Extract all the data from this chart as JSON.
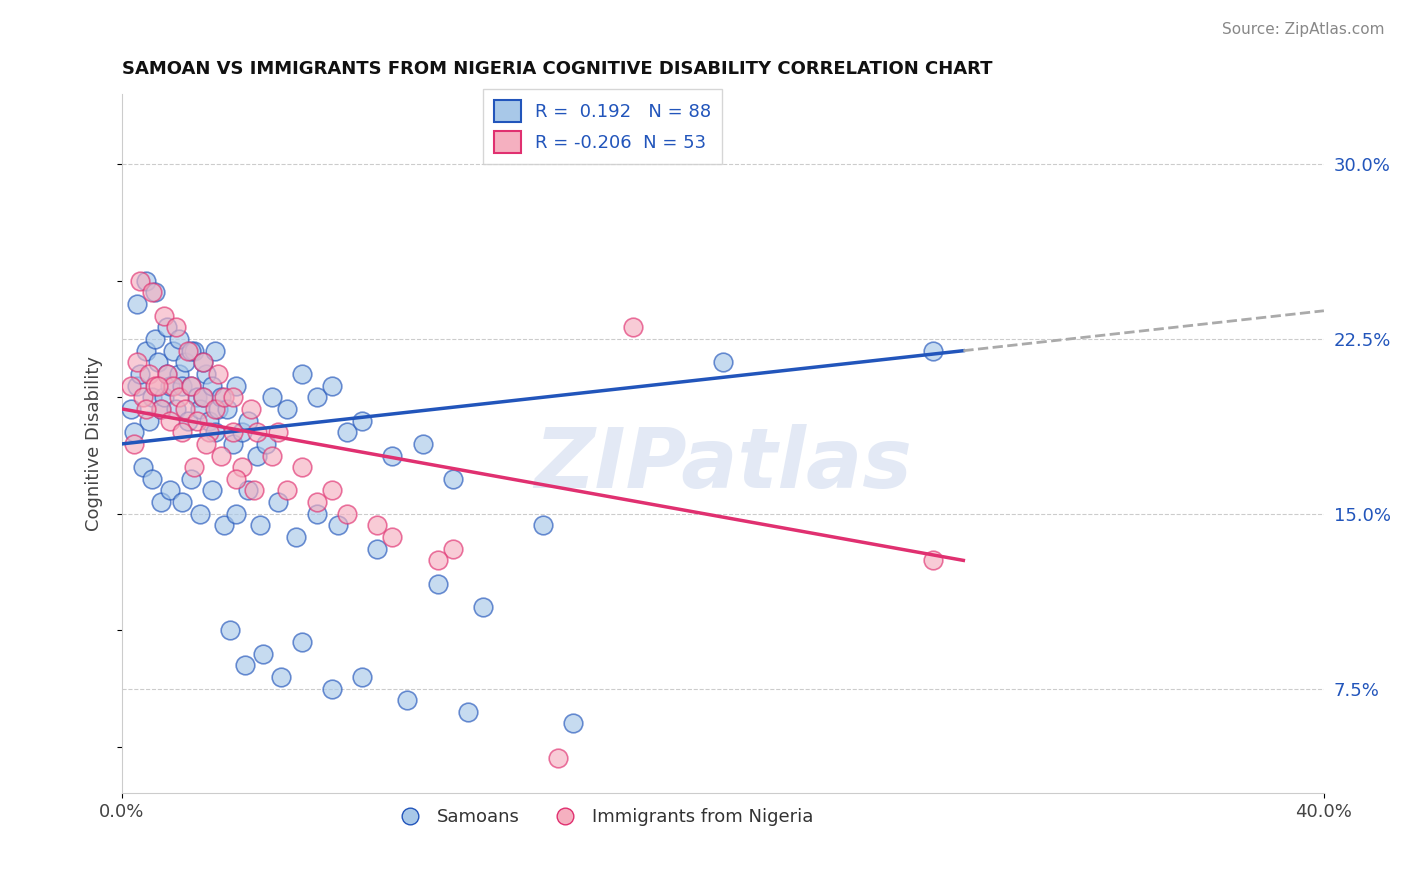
{
  "title": "SAMOAN VS IMMIGRANTS FROM NIGERIA COGNITIVE DISABILITY CORRELATION CHART",
  "source": "Source: ZipAtlas.com",
  "ylabel": "Cognitive Disability",
  "right_yticks": [
    7.5,
    15.0,
    22.5,
    30.0
  ],
  "xlim": [
    0.0,
    40.0
  ],
  "ylim": [
    3.0,
    33.0
  ],
  "blue_R": 0.192,
  "blue_N": 88,
  "pink_R": -0.206,
  "pink_N": 53,
  "blue_color": "#a8c8e8",
  "pink_color": "#f5b0c0",
  "blue_line_color": "#2255bb",
  "pink_line_color": "#e03070",
  "blue_trend_start_y": 18.0,
  "blue_trend_end_y": 22.0,
  "blue_trend_end_x": 28.0,
  "pink_trend_start_y": 19.5,
  "pink_trend_end_y": 13.0,
  "pink_dashed_end_y": 22.5,
  "pink_dashed_end_x": 35.0,
  "watermark_text": "ZIPatlas",
  "blue_scatter_x": [
    0.3,
    0.5,
    0.6,
    0.8,
    0.9,
    1.0,
    1.1,
    1.2,
    1.3,
    1.4,
    1.5,
    1.6,
    1.7,
    1.8,
    1.9,
    2.0,
    2.1,
    2.2,
    2.3,
    2.4,
    2.5,
    2.6,
    2.7,
    2.8,
    2.9,
    3.0,
    3.1,
    3.2,
    3.3,
    3.5,
    3.7,
    3.8,
    4.0,
    4.2,
    4.5,
    4.8,
    5.0,
    5.5,
    6.0,
    6.5,
    7.0,
    7.5,
    8.0,
    9.0,
    10.0,
    11.0,
    14.0,
    20.0,
    27.0,
    0.4,
    0.7,
    1.0,
    1.3,
    1.6,
    2.0,
    2.3,
    2.6,
    3.0,
    3.4,
    3.8,
    4.2,
    4.6,
    5.2,
    5.8,
    6.5,
    7.2,
    8.5,
    10.5,
    12.0,
    0.5,
    0.8,
    1.1,
    1.5,
    1.9,
    2.3,
    2.7,
    3.1,
    3.6,
    4.1,
    4.7,
    5.3,
    6.0,
    7.0,
    8.0,
    9.5,
    11.5,
    15.0
  ],
  "blue_scatter_y": [
    19.5,
    20.5,
    21.0,
    22.0,
    19.0,
    20.0,
    22.5,
    21.5,
    19.5,
    20.0,
    21.0,
    20.5,
    22.0,
    19.5,
    21.0,
    20.5,
    21.5,
    19.0,
    20.5,
    22.0,
    20.0,
    19.5,
    20.0,
    21.0,
    19.0,
    20.5,
    18.5,
    19.5,
    20.0,
    19.5,
    18.0,
    20.5,
    18.5,
    19.0,
    17.5,
    18.0,
    20.0,
    19.5,
    21.0,
    20.0,
    20.5,
    18.5,
    19.0,
    17.5,
    18.0,
    16.5,
    14.5,
    21.5,
    22.0,
    18.5,
    17.0,
    16.5,
    15.5,
    16.0,
    15.5,
    16.5,
    15.0,
    16.0,
    14.5,
    15.0,
    16.0,
    14.5,
    15.5,
    14.0,
    15.0,
    14.5,
    13.5,
    12.0,
    11.0,
    24.0,
    25.0,
    24.5,
    23.0,
    22.5,
    22.0,
    21.5,
    22.0,
    10.0,
    8.5,
    9.0,
    8.0,
    9.5,
    7.5,
    8.0,
    7.0,
    6.5,
    6.0
  ],
  "pink_scatter_x": [
    0.3,
    0.5,
    0.7,
    0.9,
    1.1,
    1.3,
    1.5,
    1.7,
    1.9,
    2.1,
    2.3,
    2.5,
    2.7,
    2.9,
    3.1,
    3.4,
    3.7,
    4.0,
    4.5,
    5.0,
    5.5,
    6.5,
    7.5,
    9.0,
    11.0,
    17.0,
    27.0,
    0.4,
    0.8,
    1.2,
    1.6,
    2.0,
    2.4,
    2.8,
    3.3,
    3.8,
    4.4,
    0.6,
    1.0,
    1.4,
    1.8,
    2.2,
    2.7,
    3.2,
    3.7,
    4.3,
    5.2,
    6.0,
    7.0,
    8.5,
    10.5,
    14.5
  ],
  "pink_scatter_y": [
    20.5,
    21.5,
    20.0,
    21.0,
    20.5,
    19.5,
    21.0,
    20.5,
    20.0,
    19.5,
    20.5,
    19.0,
    20.0,
    18.5,
    19.5,
    20.0,
    18.5,
    17.0,
    18.5,
    17.5,
    16.0,
    15.5,
    15.0,
    14.0,
    13.5,
    23.0,
    13.0,
    18.0,
    19.5,
    20.5,
    19.0,
    18.5,
    17.0,
    18.0,
    17.5,
    16.5,
    16.0,
    25.0,
    24.5,
    23.5,
    23.0,
    22.0,
    21.5,
    21.0,
    20.0,
    19.5,
    18.5,
    17.0,
    16.0,
    14.5,
    13.0,
    4.5
  ]
}
